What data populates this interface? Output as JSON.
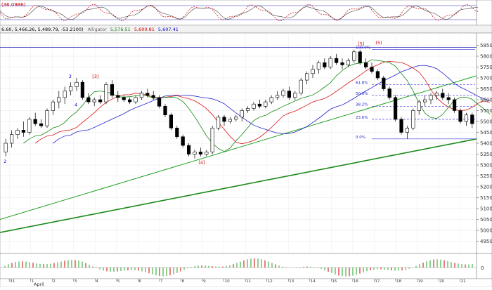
{
  "top_panel": {
    "label": "(36.0986)"
  },
  "info_bar": {
    "ohlc_text": "6.60, 5,466.26, 5,489.79, -53.2100)",
    "indicator_name": "Alligator",
    "values": [
      "5,576.51",
      "5,600.81",
      "5,607.41"
    ],
    "value_colors": [
      "#1a7a1a",
      "#cc0000",
      "#0000cc"
    ]
  },
  "chart_data": {
    "type": "candlestick",
    "ylim": [
      4900,
      5900
    ],
    "y_ticks": [
      4950,
      5000,
      5050,
      5100,
      5150,
      5200,
      5250,
      5300,
      5350,
      5400,
      5450,
      5500,
      5550,
      5600,
      5650,
      5700,
      5750,
      5800,
      5850
    ],
    "x_tick_labels": [
      "31",
      "1",
      "2",
      "3",
      "4",
      "5",
      "6",
      "7",
      "8",
      "9",
      "10",
      "11",
      "12",
      "13",
      "14",
      "15",
      "16",
      "17",
      "18",
      "19",
      "20",
      "21"
    ],
    "x_month_label": "April",
    "candles": [
      [
        5360,
        5420,
        5340,
        5400
      ],
      [
        5400,
        5460,
        5380,
        5440
      ],
      [
        5440,
        5470,
        5420,
        5460
      ],
      [
        5460,
        5500,
        5430,
        5450
      ],
      [
        5450,
        5520,
        5440,
        5510
      ],
      [
        5510,
        5540,
        5480,
        5490
      ],
      [
        5490,
        5510,
        5470,
        5480
      ],
      [
        5480,
        5560,
        5470,
        5550
      ],
      [
        5550,
        5600,
        5530,
        5590
      ],
      [
        5590,
        5640,
        5560,
        5610
      ],
      [
        5610,
        5660,
        5580,
        5640
      ],
      [
        5640,
        5680,
        5620,
        5660
      ],
      [
        5660,
        5700,
        5640,
        5680
      ],
      [
        5680,
        5690,
        5600,
        5610
      ],
      [
        5610,
        5630,
        5580,
        5590
      ],
      [
        5590,
        5610,
        5570,
        5600
      ],
      [
        5600,
        5620,
        5580,
        5590
      ],
      [
        5590,
        5680,
        5580,
        5670
      ],
      [
        5670,
        5690,
        5610,
        5620
      ],
      [
        5620,
        5640,
        5590,
        5610
      ],
      [
        5610,
        5620,
        5590,
        5600
      ],
      [
        5600,
        5610,
        5580,
        5590
      ],
      [
        5590,
        5620,
        5580,
        5610
      ],
      [
        5610,
        5640,
        5600,
        5630
      ],
      [
        5630,
        5650,
        5610,
        5620
      ],
      [
        5620,
        5640,
        5600,
        5610
      ],
      [
        5610,
        5620,
        5560,
        5570
      ],
      [
        5570,
        5580,
        5520,
        5530
      ],
      [
        5530,
        5540,
        5460,
        5470
      ],
      [
        5470,
        5480,
        5420,
        5430
      ],
      [
        5430,
        5440,
        5380,
        5390
      ],
      [
        5390,
        5400,
        5340,
        5350
      ],
      [
        5350,
        5370,
        5330,
        5360
      ],
      [
        5360,
        5380,
        5340,
        5350
      ],
      [
        5350,
        5370,
        5340,
        5360
      ],
      [
        5360,
        5480,
        5350,
        5470
      ],
      [
        5470,
        5530,
        5460,
        5520
      ],
      [
        5520,
        5530,
        5480,
        5500
      ],
      [
        5500,
        5520,
        5490,
        5510
      ],
      [
        5510,
        5530,
        5500,
        5520
      ],
      [
        5520,
        5560,
        5500,
        5550
      ],
      [
        5550,
        5570,
        5540,
        5560
      ],
      [
        5560,
        5590,
        5550,
        5580
      ],
      [
        5580,
        5600,
        5560,
        5570
      ],
      [
        5570,
        5600,
        5560,
        5590
      ],
      [
        5590,
        5620,
        5580,
        5610
      ],
      [
        5610,
        5640,
        5600,
        5620
      ],
      [
        5620,
        5650,
        5610,
        5640
      ],
      [
        5640,
        5660,
        5600,
        5610
      ],
      [
        5610,
        5640,
        5600,
        5630
      ],
      [
        5630,
        5700,
        5620,
        5690
      ],
      [
        5690,
        5730,
        5670,
        5720
      ],
      [
        5720,
        5760,
        5700,
        5740
      ],
      [
        5740,
        5780,
        5720,
        5770
      ],
      [
        5770,
        5790,
        5740,
        5750
      ],
      [
        5750,
        5800,
        5740,
        5790
      ],
      [
        5790,
        5810,
        5760,
        5770
      ],
      [
        5770,
        5790,
        5740,
        5760
      ],
      [
        5760,
        5790,
        5750,
        5780
      ],
      [
        5780,
        5830,
        5770,
        5820
      ],
      [
        5820,
        5830,
        5760,
        5770
      ],
      [
        5770,
        5790,
        5740,
        5750
      ],
      [
        5750,
        5770,
        5720,
        5730
      ],
      [
        5730,
        5740,
        5690,
        5700
      ],
      [
        5700,
        5710,
        5640,
        5650
      ],
      [
        5650,
        5660,
        5600,
        5610
      ],
      [
        5610,
        5620,
        5500,
        5510
      ],
      [
        5510,
        5520,
        5440,
        5450
      ],
      [
        5450,
        5480,
        5420,
        5470
      ],
      [
        5470,
        5560,
        5460,
        5550
      ],
      [
        5550,
        5600,
        5530,
        5590
      ],
      [
        5590,
        5620,
        5570,
        5600
      ],
      [
        5600,
        5630,
        5580,
        5620
      ],
      [
        5620,
        5640,
        5600,
        5630
      ],
      [
        5630,
        5650,
        5600,
        5610
      ],
      [
        5610,
        5630,
        5580,
        5600
      ],
      [
        5600,
        5610,
        5540,
        5550
      ],
      [
        5550,
        5560,
        5490,
        5500
      ],
      [
        5500,
        5540,
        5480,
        5530
      ],
      [
        5530,
        5540,
        5470,
        5490
      ]
    ],
    "fib_levels": [
      {
        "label": "100.0%",
        "value": 5830
      },
      {
        "label": "61.8%",
        "value": 5670
      },
      {
        "label": "50.0%",
        "value": 5620
      },
      {
        "label": "38.2%",
        "value": 5570
      },
      {
        "label": "23.6%",
        "value": 5510
      },
      {
        "label": "0.0%",
        "value": 5420
      }
    ],
    "wave_labels": [
      {
        "text": "2",
        "color": "#0000cc"
      },
      {
        "text": "3",
        "color": "#0000cc"
      },
      {
        "text": "4",
        "color": "#0000cc"
      },
      {
        "text": "[3]",
        "color": "#cc0000"
      },
      {
        "text": "[4]",
        "color": "#cc0000"
      },
      {
        "text": "[5]",
        "color": "#cc0000"
      },
      {
        "text": "(5)",
        "color": "#cc0000"
      }
    ],
    "oscillator_zero_label": "0"
  }
}
